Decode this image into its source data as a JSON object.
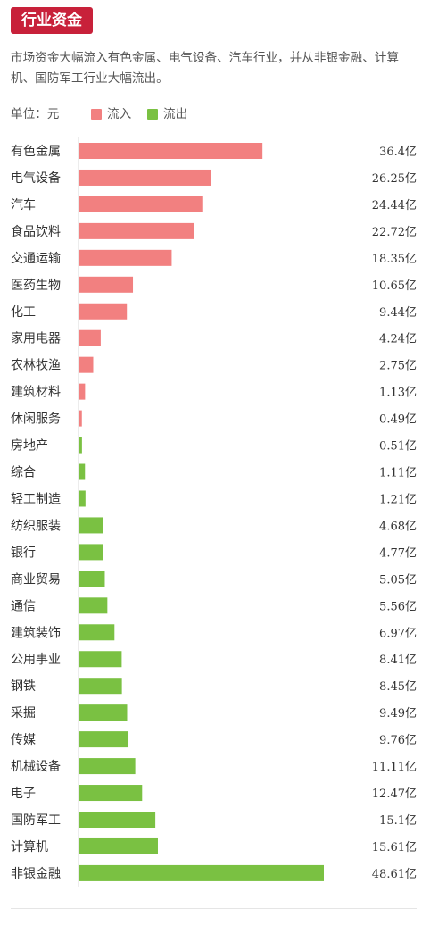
{
  "header": {
    "tag": "行业资金",
    "summary": "市场资金大幅流入有色金属、电气设备、汽车行业，并从非银金融、计算机、国防军工行业大幅流出。"
  },
  "legend": {
    "unit": "单位：元",
    "inflow": "流入",
    "outflow": "流出"
  },
  "colors": {
    "tag_bg": "#c8213a",
    "inflow": "#f28080",
    "outflow": "#7ac142",
    "axis": "#d9d9d9",
    "text": "#333333"
  },
  "chart_data": {
    "type": "bar",
    "orientation": "horizontal",
    "unit": "亿",
    "categories": [
      "有色金属",
      "电气设备",
      "汽车",
      "食品饮料",
      "交通运输",
      "医药生物",
      "化工",
      "家用电器",
      "农林牧渔",
      "建筑材料",
      "休闲服务",
      "房地产",
      "综合",
      "轻工制造",
      "纺织服装",
      "银行",
      "商业贸易",
      "通信",
      "建筑装饰",
      "公用事业",
      "钢铁",
      "采掘",
      "传媒",
      "机械设备",
      "电子",
      "国防军工",
      "计算机",
      "非银金融"
    ],
    "series": [
      {
        "name": "流入",
        "values": [
          36.4,
          26.25,
          24.44,
          22.72,
          18.35,
          10.65,
          9.44,
          4.24,
          2.75,
          1.13,
          0.49,
          null,
          null,
          null,
          null,
          null,
          null,
          null,
          null,
          null,
          null,
          null,
          null,
          null,
          null,
          null,
          null,
          null
        ]
      },
      {
        "name": "流出",
        "values": [
          null,
          null,
          null,
          null,
          null,
          null,
          null,
          null,
          null,
          null,
          null,
          0.51,
          1.11,
          1.21,
          4.68,
          4.77,
          5.05,
          5.56,
          6.97,
          8.41,
          8.45,
          9.49,
          9.76,
          11.11,
          12.47,
          15.1,
          15.61,
          48.61
        ]
      }
    ],
    "value_labels": [
      "36.4亿",
      "26.25亿",
      "24.44亿",
      "22.72亿",
      "18.35亿",
      "10.65亿",
      "9.44亿",
      "4.24亿",
      "2.75亿",
      "1.13亿",
      "0.49亿",
      "0.51亿",
      "1.11亿",
      "1.21亿",
      "4.68亿",
      "4.77亿",
      "5.05亿",
      "5.56亿",
      "6.97亿",
      "8.41亿",
      "8.45亿",
      "9.49亿",
      "9.76亿",
      "11.11亿",
      "12.47亿",
      "15.1亿",
      "15.61亿",
      "48.61亿"
    ],
    "xlim": [
      0,
      48.61
    ],
    "grid": false,
    "legend_position": "top-left"
  }
}
